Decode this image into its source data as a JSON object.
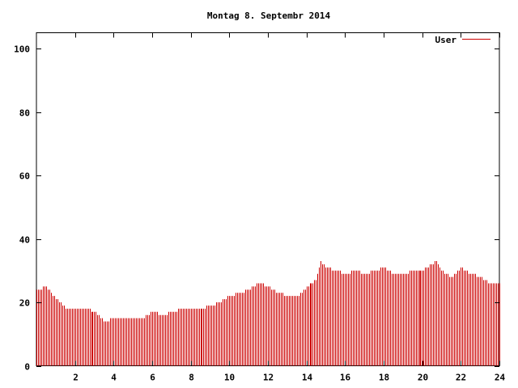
{
  "chart_data": {
    "type": "bar",
    "title": "Montag 8. Septembr 2014",
    "legend": {
      "label": "User",
      "position": "top-right"
    },
    "xlabel": "",
    "ylabel": "",
    "xlim": [
      0,
      24
    ],
    "ylim": [
      0,
      105
    ],
    "xticks": [
      "2",
      "4",
      "6",
      "8",
      "10",
      "12",
      "14",
      "16",
      "18",
      "20",
      "22",
      "24"
    ],
    "yticks": [
      "0",
      "20",
      "40",
      "60",
      "80",
      "100"
    ],
    "grid": false,
    "series": [
      {
        "name": "User",
        "color": "#cc0000",
        "points": [
          [
            0.0,
            24
          ],
          [
            0.5,
            25
          ],
          [
            1.0,
            21
          ],
          [
            1.5,
            18
          ],
          [
            2.0,
            18
          ],
          [
            2.5,
            18
          ],
          [
            3.0,
            17
          ],
          [
            3.5,
            14
          ],
          [
            4.0,
            15
          ],
          [
            4.5,
            15
          ],
          [
            5.0,
            15
          ],
          [
            5.5,
            15
          ],
          [
            6.0,
            17
          ],
          [
            6.5,
            16
          ],
          [
            7.0,
            17
          ],
          [
            7.5,
            18
          ],
          [
            8.0,
            18
          ],
          [
            8.5,
            18
          ],
          [
            9.0,
            19
          ],
          [
            9.5,
            20
          ],
          [
            10.0,
            22
          ],
          [
            10.5,
            23
          ],
          [
            11.0,
            24
          ],
          [
            11.5,
            26
          ],
          [
            12.0,
            25
          ],
          [
            12.5,
            23
          ],
          [
            13.0,
            22
          ],
          [
            13.5,
            22
          ],
          [
            14.0,
            25
          ],
          [
            14.5,
            27
          ],
          [
            14.75,
            33
          ],
          [
            15.0,
            31
          ],
          [
            15.5,
            30
          ],
          [
            16.0,
            29
          ],
          [
            16.5,
            30
          ],
          [
            17.0,
            29
          ],
          [
            17.5,
            30
          ],
          [
            18.0,
            31
          ],
          [
            18.5,
            29
          ],
          [
            19.0,
            29
          ],
          [
            19.5,
            30
          ],
          [
            20.0,
            30
          ],
          [
            20.5,
            32
          ],
          [
            20.75,
            33
          ],
          [
            21.0,
            30
          ],
          [
            21.5,
            28
          ],
          [
            22.0,
            31
          ],
          [
            22.5,
            29
          ],
          [
            23.0,
            28
          ],
          [
            23.5,
            26
          ],
          [
            24.0,
            26
          ]
        ]
      }
    ]
  }
}
